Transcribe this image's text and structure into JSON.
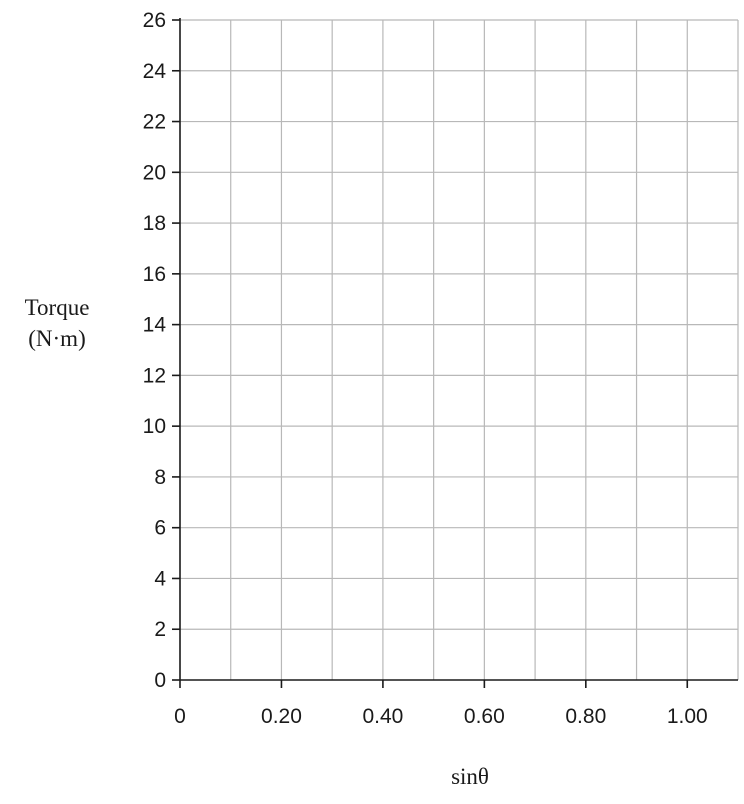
{
  "chart_data": {
    "type": "line",
    "title": "",
    "xlabel": "sinθ",
    "ylabel_line1": "Torque",
    "ylabel_line2": "(N·m)",
    "xlim": [
      0,
      1.1
    ],
    "ylim": [
      0,
      26
    ],
    "grid": true,
    "x_grid_step": 0.1,
    "y_grid_step": 2,
    "x_ticks": [
      {
        "value": 0,
        "label": "0"
      },
      {
        "value": 0.2,
        "label": "0.20"
      },
      {
        "value": 0.4,
        "label": "0.40"
      },
      {
        "value": 0.6,
        "label": "0.60"
      },
      {
        "value": 0.8,
        "label": "0.80"
      },
      {
        "value": 1.0,
        "label": "1.00"
      }
    ],
    "y_ticks": [
      {
        "value": 0,
        "label": "0"
      },
      {
        "value": 2,
        "label": "2"
      },
      {
        "value": 4,
        "label": "4"
      },
      {
        "value": 6,
        "label": "6"
      },
      {
        "value": 8,
        "label": "8"
      },
      {
        "value": 10,
        "label": "10"
      },
      {
        "value": 12,
        "label": "12"
      },
      {
        "value": 14,
        "label": "14"
      },
      {
        "value": 16,
        "label": "16"
      },
      {
        "value": 18,
        "label": "18"
      },
      {
        "value": 20,
        "label": "20"
      },
      {
        "value": 22,
        "label": "22"
      },
      {
        "value": 24,
        "label": "24"
      },
      {
        "value": 26,
        "label": "26"
      }
    ],
    "series": [],
    "colors": {
      "grid": "#b8b8b8",
      "axis": "#1a1a1a",
      "text": "#1a1a1a"
    }
  }
}
